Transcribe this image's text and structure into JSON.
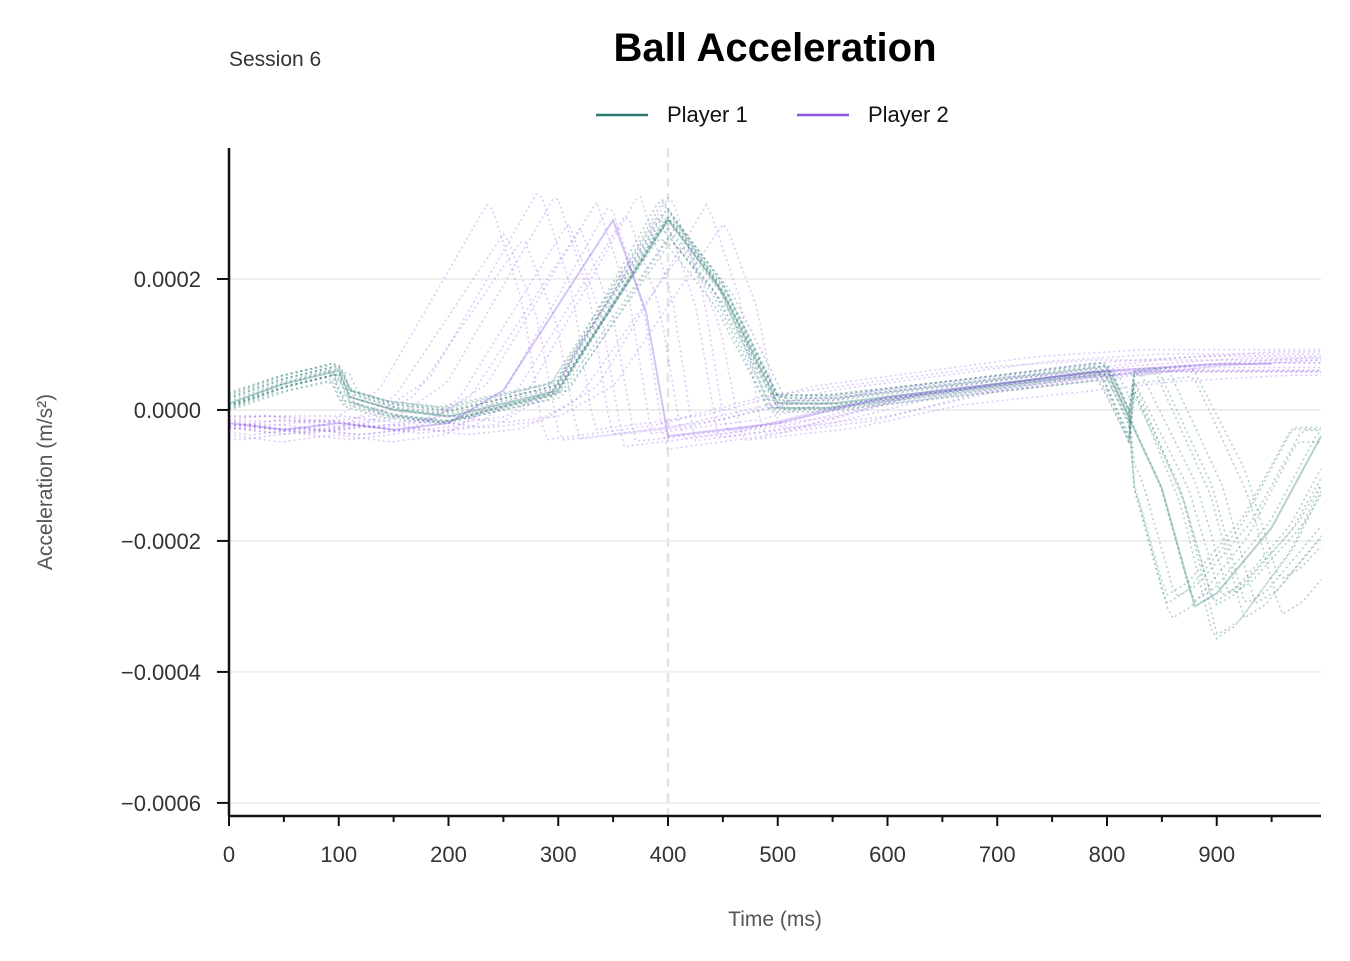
{
  "chart_data": {
    "type": "line",
    "title": "Ball Acceleration",
    "subtitle": "Session 6",
    "xlabel": "Time (ms)",
    "ylabel": "Acceleration (m/s²)",
    "xlim": [
      0,
      995
    ],
    "ylim": [
      -0.00062,
      0.0004
    ],
    "xticks": [
      0,
      100,
      200,
      300,
      400,
      500,
      600,
      700,
      800,
      900
    ],
    "xtick_labels": [
      "0",
      "100",
      "200",
      "300",
      "400",
      "500",
      "600",
      "700",
      "800",
      "900"
    ],
    "yticks": [
      0.0002,
      0.0,
      -0.0002,
      -0.0004,
      -0.0006
    ],
    "ytick_labels": [
      "0.0002",
      "0.0000",
      "−0.0002",
      "−0.0004",
      "−0.0006"
    ],
    "grid": true,
    "reference_line_x": 400,
    "legend_position": "top-center",
    "series": [
      {
        "name": "Player 1",
        "color": "#2a7a72",
        "style": "solid",
        "x": [
          0,
          50,
          100,
          110,
          150,
          200,
          250,
          300,
          350,
          400,
          450,
          500,
          550,
          600,
          700,
          800,
          850,
          880,
          900,
          950,
          995
        ],
        "values": [
          1e-05,
          4e-05,
          6e-05,
          2e-05,
          0.0,
          -1e-05,
          1e-05,
          3e-05,
          0.00016,
          0.00029,
          0.00018,
          1e-05,
          1e-05,
          2e-05,
          4e-05,
          6e-05,
          -0.00012,
          -0.0003,
          -0.00028,
          -0.00018,
          -4e-05
        ]
      },
      {
        "name": "Player 2",
        "color": "#8b55e8",
        "style": "solid",
        "x": [
          0,
          50,
          100,
          150,
          200,
          250,
          300,
          350,
          380,
          400,
          450,
          500,
          600,
          700,
          800,
          900,
          950
        ],
        "values": [
          -2e-05,
          -3e-05,
          -2e-05,
          -3e-05,
          -2e-05,
          3e-05,
          0.00016,
          0.00029,
          0.00015,
          -4e-05,
          -3e-05,
          -2e-05,
          2e-05,
          4e-05,
          6e-05,
          7e-05,
          7e-05
        ]
      }
    ]
  }
}
